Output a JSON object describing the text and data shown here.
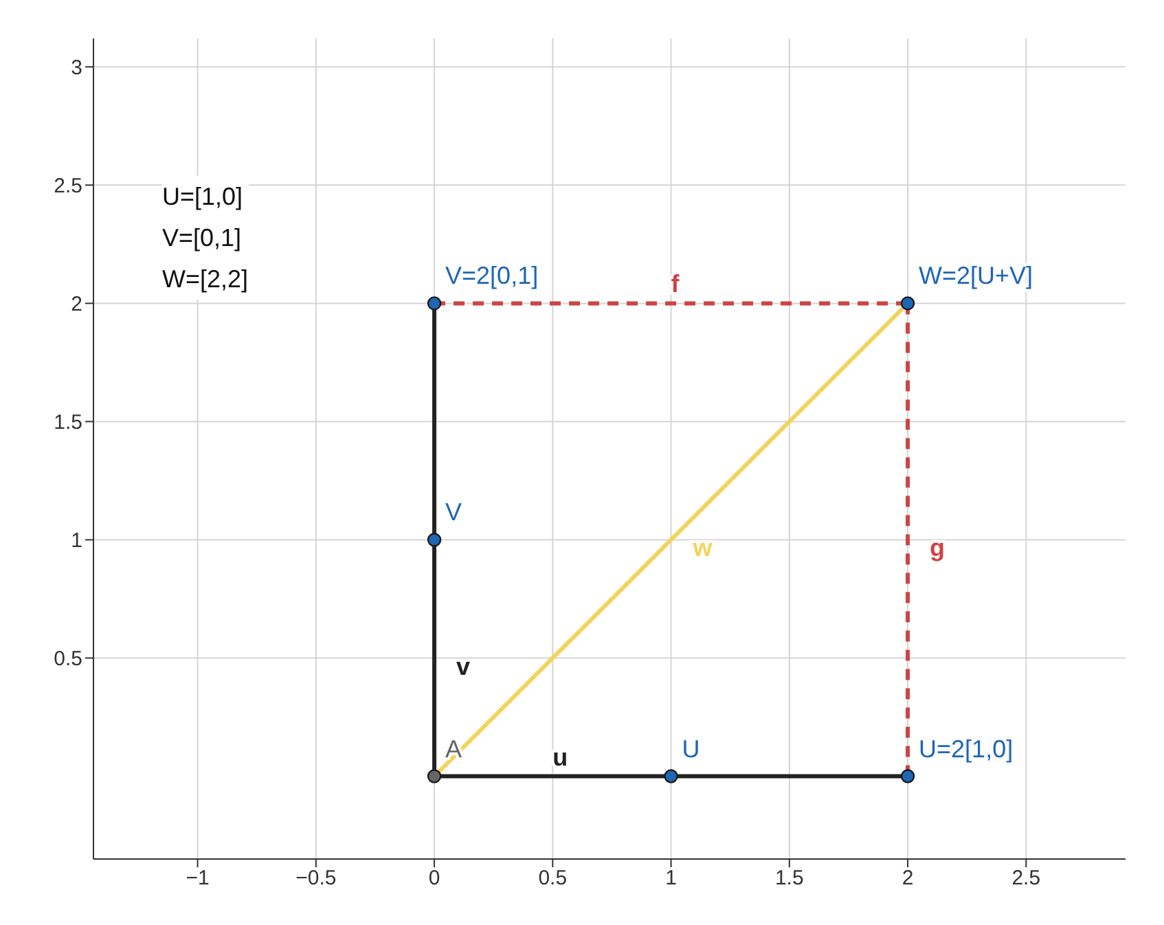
{
  "chart_data": {
    "type": "line",
    "xlim": [
      -1.44,
      2.92
    ],
    "ylim": [
      -0.35,
      3.12
    ],
    "xticks": [
      -1,
      -0.5,
      0,
      0.5,
      1,
      1.5,
      2,
      2.5
    ],
    "yticks": [
      0.5,
      1,
      1.5,
      2,
      2.5,
      3
    ],
    "grid": true,
    "legend": false,
    "marker": "none",
    "series": [
      {
        "name": "u",
        "color": "#222222",
        "x": [
          0,
          1
        ],
        "values": [
          0,
          0
        ]
      },
      {
        "color": "#222222",
        "x": [
          1,
          2
        ],
        "values": [
          0,
          0
        ]
      },
      {
        "name": "v",
        "color": "#222222",
        "x": [
          0,
          0
        ],
        "values": [
          0,
          1
        ]
      },
      {
        "color": "#222222",
        "x": [
          0,
          0
        ],
        "values": [
          1,
          2
        ]
      },
      {
        "name": "w",
        "color": "#f2d45c",
        "x": [
          0,
          2
        ],
        "values": [
          0,
          2
        ]
      },
      {
        "name": "f",
        "color": "#cc4444",
        "x": [
          0,
          2
        ],
        "values": [
          2,
          2
        ],
        "line_style": "dashed"
      },
      {
        "name": "g",
        "color": "#cc4444",
        "x": [
          2,
          2
        ],
        "values": [
          0,
          2
        ],
        "line_style": "dashed"
      },
      {
        "type": "scatter",
        "marker": "circle",
        "x": [
          0,
          1,
          0,
          0,
          2,
          2
        ],
        "values": [
          0,
          0,
          1,
          2,
          2,
          0
        ],
        "colors": [
          "#666666",
          "#1f66b5",
          "#1f66b5",
          "#1f66b5",
          "#1f66b5",
          "#1f66b5"
        ]
      }
    ],
    "annotations": [
      "U=[1,0]",
      "V=[0,1]",
      "W=[2,2]",
      {
        "text": "A",
        "x": 0,
        "y": 0
      },
      {
        "text": "U",
        "x": 1,
        "y": 0
      },
      {
        "text": "V",
        "x": 0,
        "y": 1
      },
      {
        "text": "V=2[0,1]",
        "x": 0,
        "y": 2
      },
      {
        "text": "W=2[U+V]",
        "x": 2,
        "y": 2
      },
      {
        "text": "U=2[1,0]",
        "x": 2,
        "y": 0
      }
    ]
  }
}
